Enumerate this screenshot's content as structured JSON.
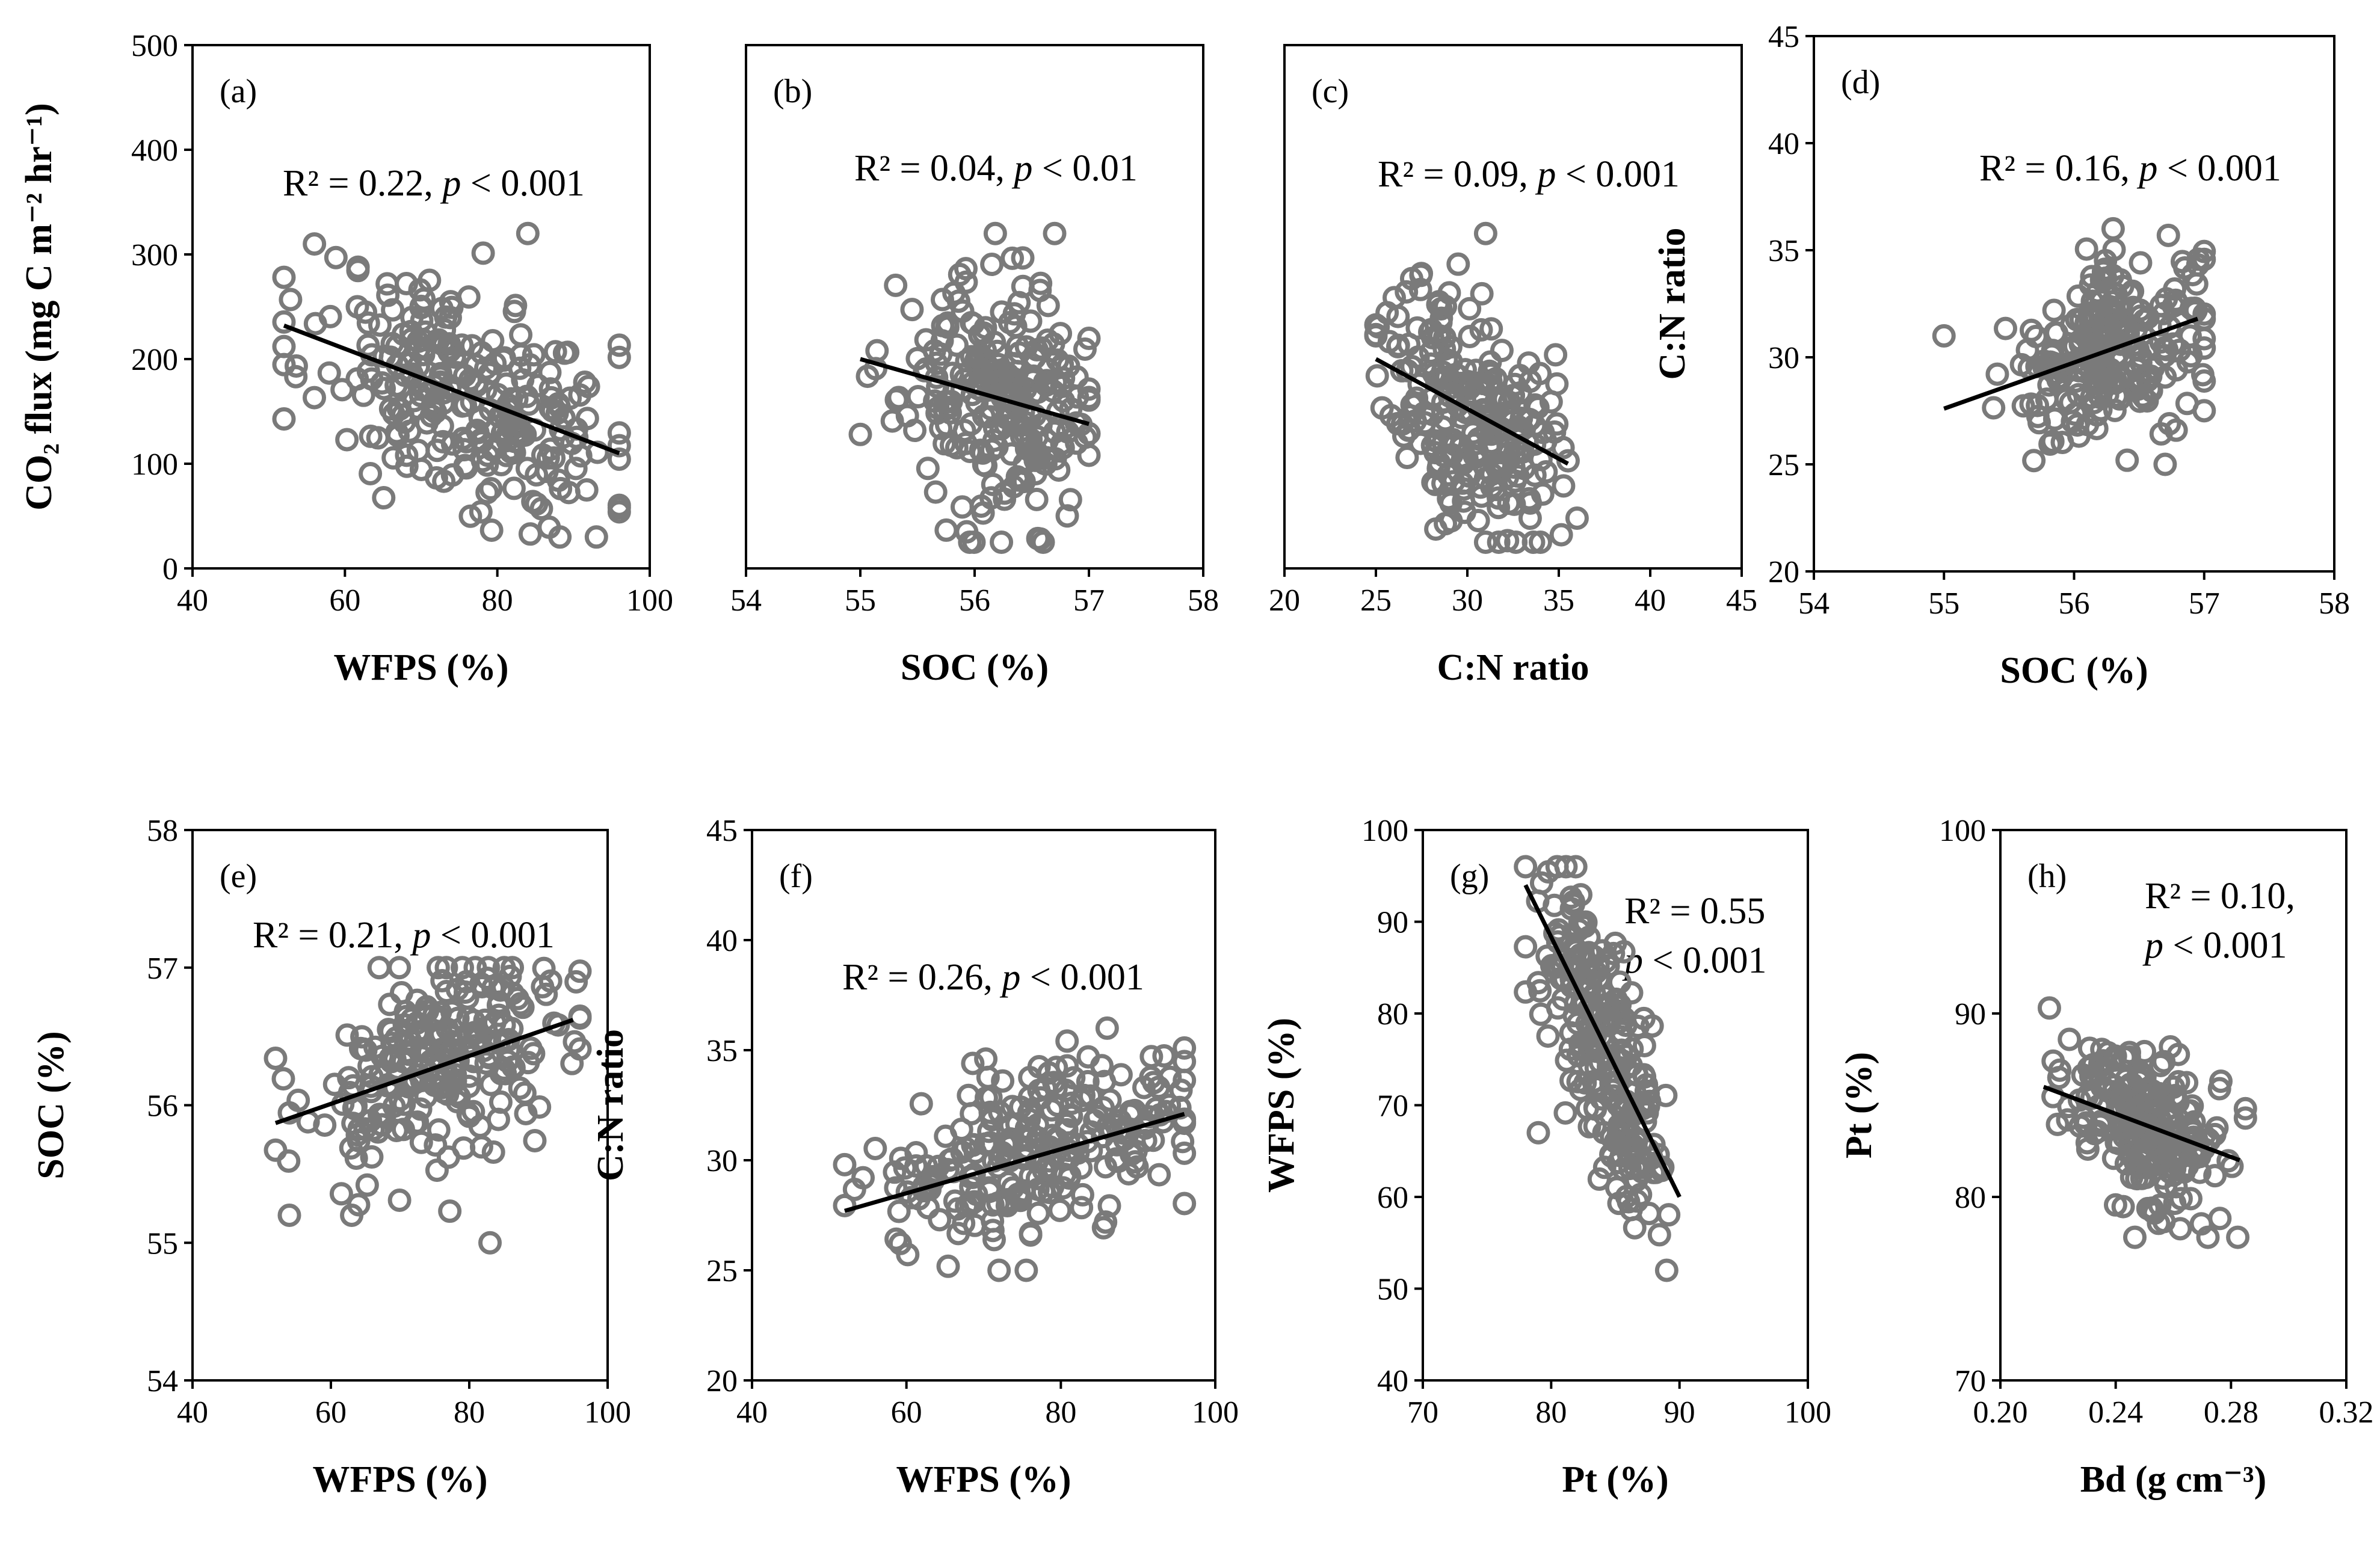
{
  "chart_data": [
    {
      "id": "a",
      "type": "scatter",
      "panel_label": "(a)",
      "xlabel": "WFPS (%)",
      "ylabel": "CO₂ flux (mg C m⁻² hr⁻¹)",
      "xlim": [
        40,
        100
      ],
      "ylim": [
        0,
        500
      ],
      "xticks": [
        "40",
        "60",
        "80",
        "100"
      ],
      "yticks": [
        "0",
        "100",
        "200",
        "300",
        "400",
        "500"
      ],
      "show_yticks": true,
      "annotation": {
        "pre": "R² = 0.22, ",
        "p": "p",
        "post": " < 0.001"
      },
      "fit": {
        "x": [
          52,
          96
        ],
        "y": [
          232,
          110
        ]
      },
      "n_points": 260,
      "x_mean": 76,
      "x_sd": 10,
      "x_range": [
        52,
        96
      ],
      "y_sd": 52,
      "y_range": [
        30,
        320
      ],
      "seed": 11,
      "extra_points": [
        {
          "x": 56,
          "y": 310
        },
        {
          "x": 84,
          "y": 320
        },
        {
          "x": 93,
          "y": 30
        },
        {
          "x": 52,
          "y": 212
        }
      ]
    },
    {
      "id": "b",
      "type": "scatter",
      "panel_label": "(b)",
      "xlabel": "SOC (%)",
      "ylabel": "",
      "xlim": [
        54,
        58
      ],
      "ylim": [
        0,
        500
      ],
      "xticks": [
        "54",
        "55",
        "56",
        "57",
        "58"
      ],
      "yticks": [],
      "show_yticks": false,
      "annotation": {
        "pre": "R² = 0.04, ",
        "p": "p",
        "post": " < 0.01"
      },
      "fit": {
        "x": [
          55,
          57
        ],
        "y": [
          200,
          138
        ]
      },
      "n_points": 240,
      "x_mean": 56.2,
      "x_sd": 0.42,
      "x_range": [
        55,
        57
      ],
      "y_sd": 55,
      "y_range": [
        25,
        320
      ],
      "seed": 23,
      "extra_points": [
        {
          "x": 55,
          "y": 128
        },
        {
          "x": 56.7,
          "y": 320
        },
        {
          "x": 56.6,
          "y": 25
        }
      ]
    },
    {
      "id": "c",
      "type": "scatter",
      "panel_label": "(c)",
      "xlabel": "C:N ratio",
      "ylabel": "",
      "xlim": [
        20,
        45
      ],
      "ylim": [
        0,
        500
      ],
      "xticks": [
        "20",
        "25",
        "30",
        "35",
        "40",
        "45"
      ],
      "yticks": [],
      "show_yticks": false,
      "annotation": {
        "pre": "R² = 0.09, ",
        "p": "p",
        "post": " < 0.001"
      },
      "fit": {
        "x": [
          25,
          35.5
        ],
        "y": [
          200,
          100
        ]
      },
      "n_points": 240,
      "x_mean": 30,
      "x_sd": 2.3,
      "x_range": [
        25,
        36
      ],
      "y_sd": 55,
      "y_range": [
        25,
        320
      ],
      "seed": 37,
      "extra_points": [
        {
          "x": 36,
          "y": 48
        },
        {
          "x": 31,
          "y": 25
        },
        {
          "x": 31,
          "y": 320
        }
      ]
    },
    {
      "id": "d",
      "type": "scatter",
      "panel_label": "(d)",
      "xlabel": "SOC (%)",
      "ylabel": "C:N ratio",
      "xlim": [
        54,
        58
      ],
      "ylim": [
        20,
        45
      ],
      "xticks": [
        "54",
        "55",
        "56",
        "57",
        "58"
      ],
      "yticks": [
        "20",
        "25",
        "30",
        "35",
        "40",
        "45"
      ],
      "show_yticks": true,
      "annotation": {
        "pre": "R² = 0.16, ",
        "p": "p",
        "post": " < 0.001"
      },
      "fit": {
        "x": [
          55,
          56.95
        ],
        "y": [
          27.6,
          31.8
        ]
      },
      "n_points": 240,
      "x_mean": 56.3,
      "x_sd": 0.38,
      "x_range": [
        55,
        57
      ],
      "y_sd": 1.9,
      "y_range": [
        25,
        36
      ],
      "seed": 41,
      "extra_points": [
        {
          "x": 55,
          "y": 31
        },
        {
          "x": 56.3,
          "y": 36
        },
        {
          "x": 56.7,
          "y": 25
        }
      ]
    },
    {
      "id": "e",
      "type": "scatter",
      "panel_label": "(e)",
      "xlabel": "WFPS (%)",
      "ylabel": "SOC (%)",
      "xlim": [
        40,
        100
      ],
      "ylim": [
        54,
        58
      ],
      "xticks": [
        "40",
        "60",
        "80",
        "100"
      ],
      "yticks": [
        "54",
        "55",
        "56",
        "57",
        "58"
      ],
      "show_yticks": true,
      "annotation": {
        "pre": "R² = 0.21, ",
        "p": "p",
        "post": " < 0.001"
      },
      "fit": {
        "x": [
          52,
          95
        ],
        "y": [
          55.87,
          56.62
        ]
      },
      "n_points": 240,
      "x_mean": 76,
      "x_sd": 10,
      "x_range": [
        52,
        96
      ],
      "y_sd": 0.38,
      "y_range": [
        55.2,
        57
      ],
      "seed": 53,
      "extra_points": [
        {
          "x": 83,
          "y": 55
        },
        {
          "x": 79,
          "y": 57
        },
        {
          "x": 54,
          "y": 55.2
        }
      ]
    },
    {
      "id": "f",
      "type": "scatter",
      "panel_label": "(f)",
      "xlabel": "WFPS (%)",
      "ylabel": "C:N ratio",
      "xlim": [
        40,
        100
      ],
      "ylim": [
        20,
        45
      ],
      "xticks": [
        "40",
        "60",
        "80",
        "100"
      ],
      "yticks": [
        "20",
        "25",
        "30",
        "35",
        "40",
        "45"
      ],
      "show_yticks": true,
      "annotation": {
        "pre": "R² = 0.26, ",
        "p": "p",
        "post": " < 0.001"
      },
      "fit": {
        "x": [
          52,
          96
        ],
        "y": [
          27.7,
          32.1
        ]
      },
      "n_points": 240,
      "x_mean": 76,
      "x_sd": 10,
      "x_range": [
        52,
        96
      ],
      "y_sd": 1.9,
      "y_range": [
        25,
        36
      ],
      "seed": 67,
      "extra_points": [
        {
          "x": 86,
          "y": 36
        },
        {
          "x": 72,
          "y": 25
        },
        {
          "x": 52,
          "y": 29.8
        }
      ]
    },
    {
      "id": "g",
      "type": "scatter",
      "panel_label": "(g)",
      "xlabel": "Pt (%)",
      "ylabel": "WFPS (%)",
      "xlim": [
        70,
        100
      ],
      "ylim": [
        40,
        100
      ],
      "xticks": [
        "70",
        "80",
        "90",
        "100"
      ],
      "yticks": [
        "40",
        "50",
        "60",
        "70",
        "80",
        "90",
        "100"
      ],
      "show_yticks": true,
      "annotation_lines": [
        {
          "pre": "R² = 0.55",
          "p": "",
          "post": ""
        },
        {
          "pre": "",
          "p": "p",
          "post": " < 0.001"
        }
      ],
      "fit": {
        "x": [
          78,
          90
        ],
        "y": [
          94,
          60
        ]
      },
      "n_points": 240,
      "x_mean": 84,
      "x_sd": 2.4,
      "x_range": [
        78,
        90
      ],
      "y_sd": 6.5,
      "y_range": [
        52,
        96
      ],
      "seed": 79,
      "extra_points": [
        {
          "x": 78,
          "y": 96
        },
        {
          "x": 89,
          "y": 52
        },
        {
          "x": 79,
          "y": 67
        }
      ]
    },
    {
      "id": "h",
      "type": "scatter",
      "panel_label": "(h)",
      "xlabel": "Bd (g cm⁻³)",
      "ylabel": "Pt (%)",
      "xlim": [
        0.2,
        0.32
      ],
      "ylim": [
        70,
        100
      ],
      "xticks": [
        "0.20",
        "0.24",
        "0.28",
        "0.32"
      ],
      "yticks": [
        "70",
        "80",
        "90",
        "100"
      ],
      "show_yticks": true,
      "annotation_lines": [
        {
          "pre": "R² = 0.10,",
          "p": "",
          "post": ""
        },
        {
          "pre": "",
          "p": "p",
          "post": " < 0.001"
        }
      ],
      "fit": {
        "x": [
          0.215,
          0.283
        ],
        "y": [
          86,
          82
        ]
      },
      "n_points": 240,
      "x_mean": 0.248,
      "x_sd": 0.014,
      "x_range": [
        0.213,
        0.285
      ],
      "y_sd": 2.2,
      "y_range": [
        77.8,
        90.3
      ],
      "seed": 97,
      "extra_points": [
        {
          "x": 0.217,
          "y": 90.3
        },
        {
          "x": 0.272,
          "y": 77.8
        },
        {
          "x": 0.285,
          "y": 84.3
        }
      ]
    }
  ]
}
